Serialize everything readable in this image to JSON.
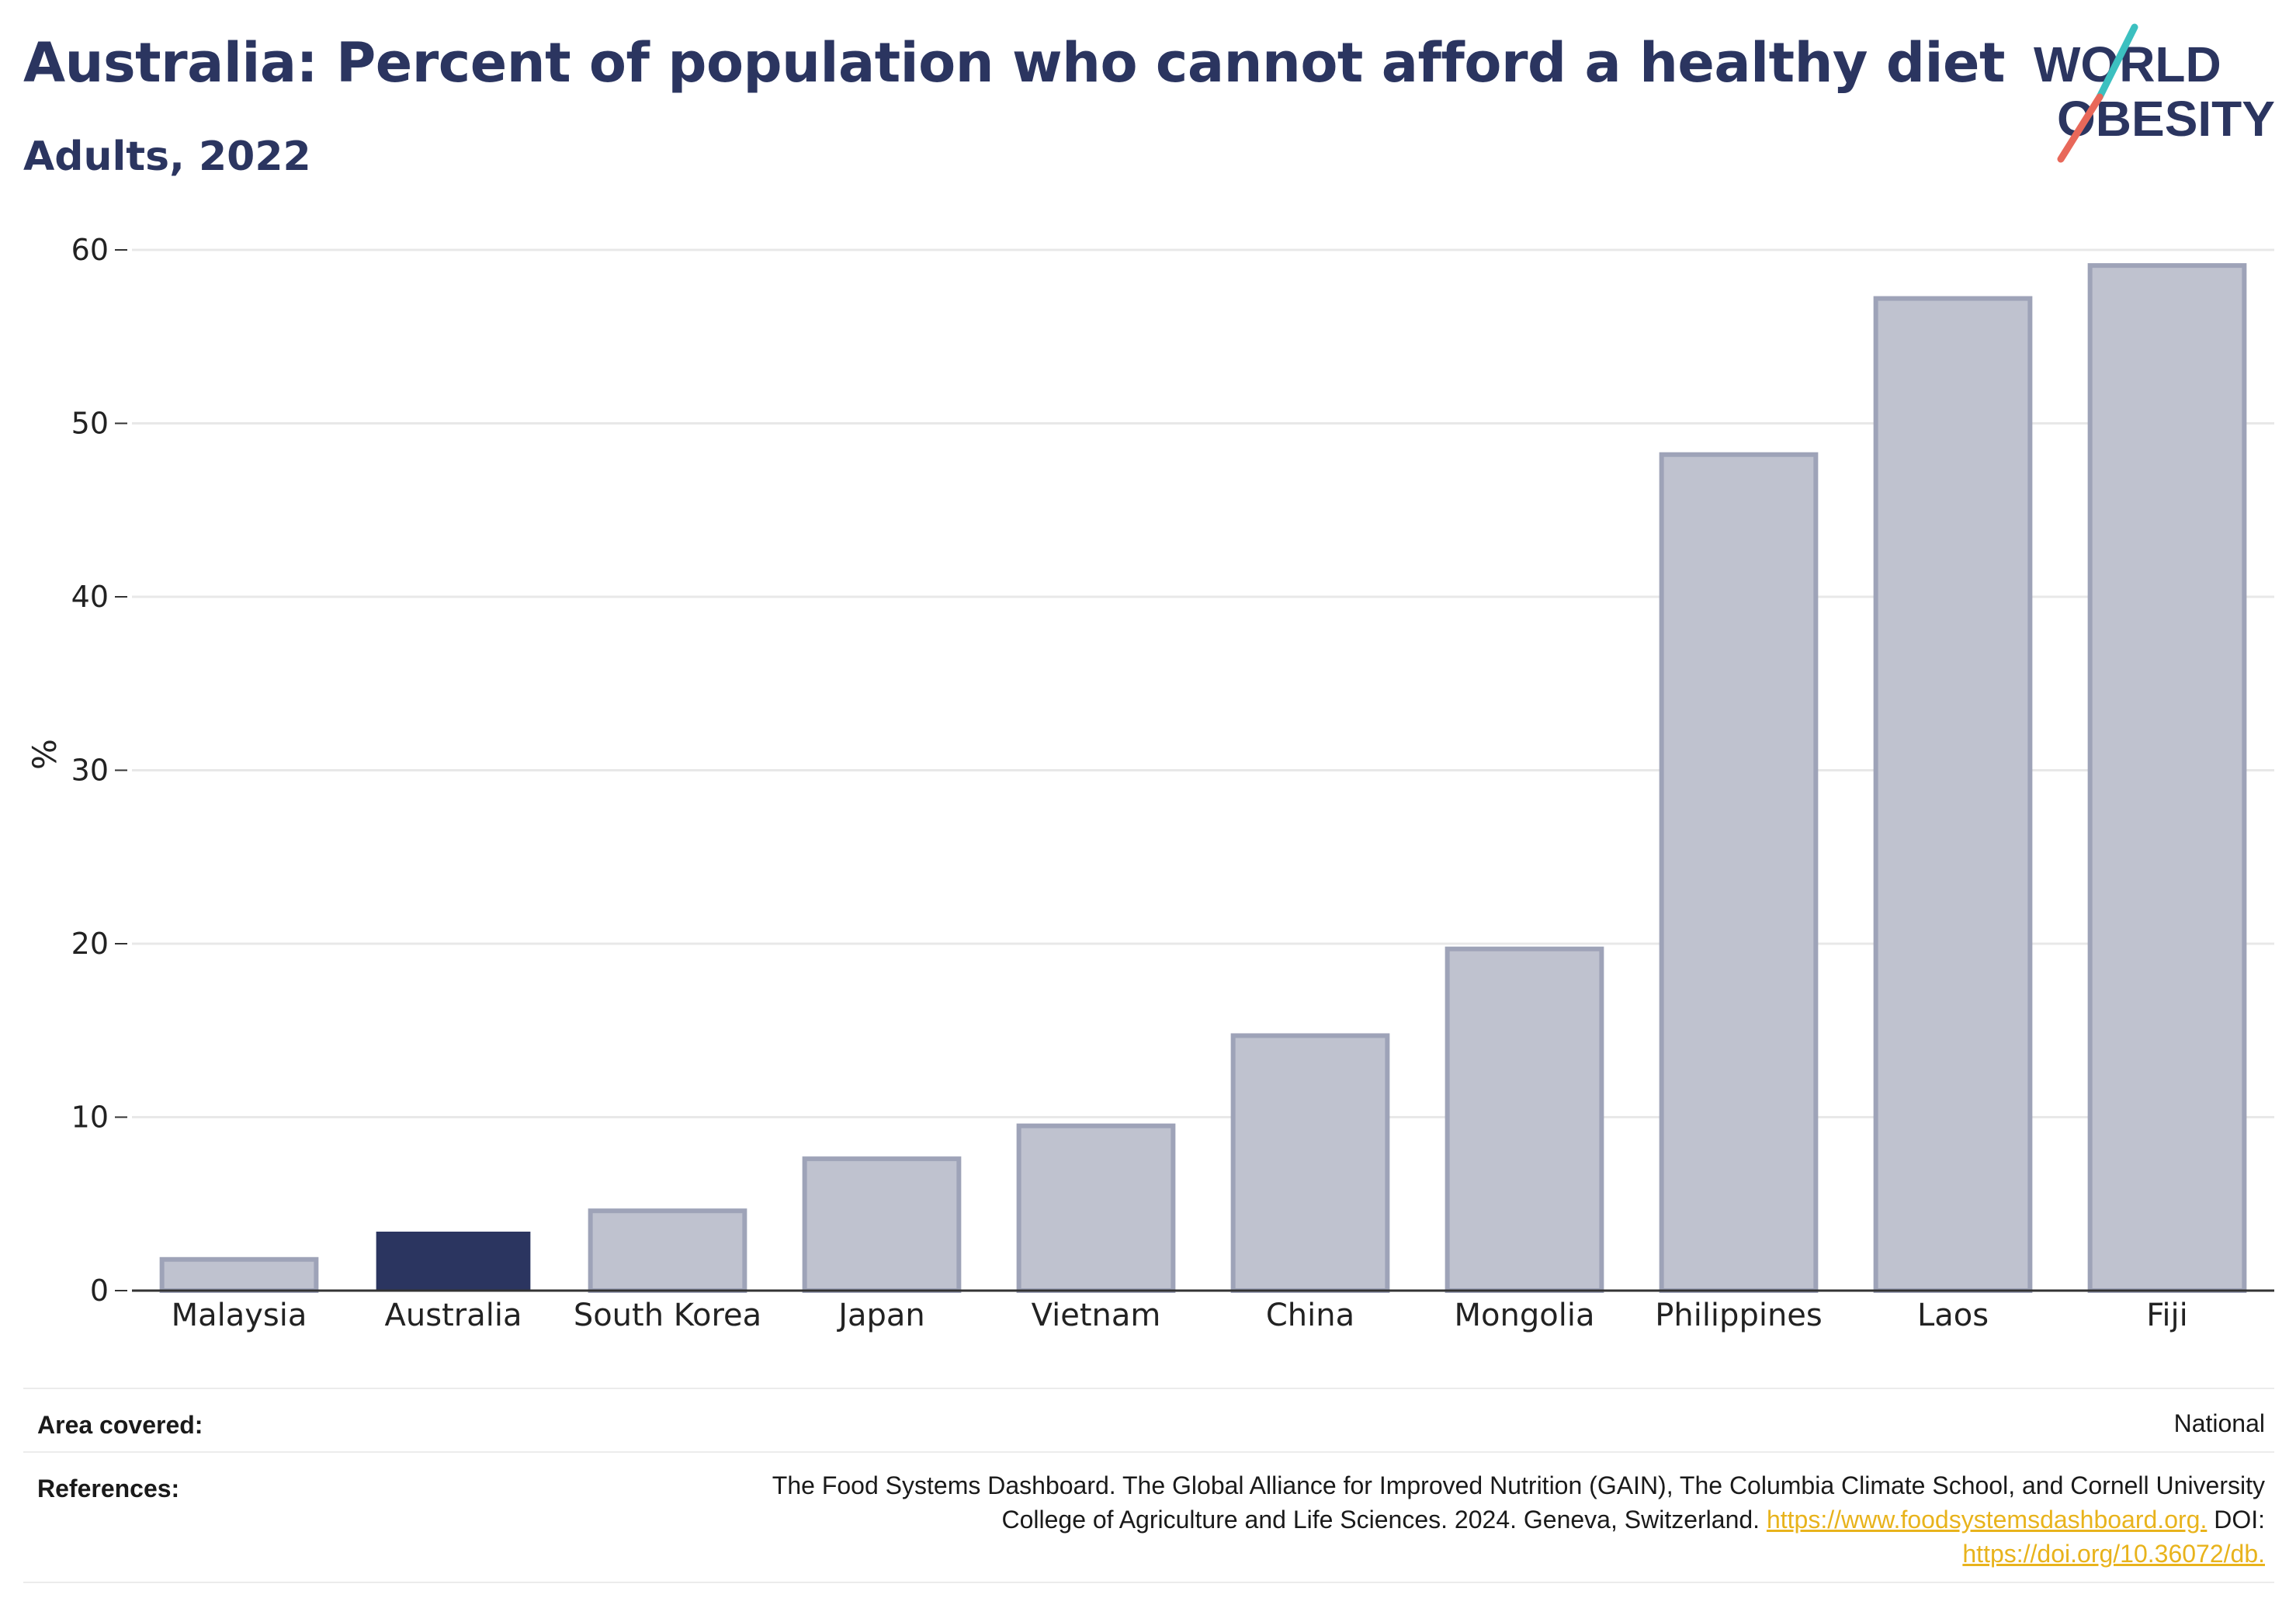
{
  "header": {
    "title": "Australia: Percent of population who cannot afford a healthy diet",
    "subtitle": "Adults, 2022"
  },
  "logo": {
    "line1": "WORLD",
    "line2": "OBESITY",
    "colors": {
      "text": "#2b3560",
      "slash_red": "#e8685a",
      "slash_teal": "#3cc0c0"
    }
  },
  "colors": {
    "highlight_bar": "#2b3560",
    "other_bar_fill": "#bfc2cf",
    "other_bar_stroke": "#9ea3b8",
    "gridline": "#e8e8e8",
    "axis": "#333333",
    "link": "#e8b31c"
  },
  "chart_data": {
    "type": "bar",
    "title": "Australia: Percent of population who cannot afford a healthy diet",
    "subtitle": "Adults, 2022",
    "xlabel": "",
    "ylabel": "%",
    "ylim": [
      0,
      60
    ],
    "yticks": [
      0,
      10,
      20,
      30,
      40,
      50,
      60
    ],
    "grid": true,
    "highlight": "Australia",
    "categories": [
      "Malaysia",
      "Australia",
      "South Korea",
      "Japan",
      "Vietnam",
      "China",
      "Mongolia",
      "Philippines",
      "Laos",
      "Fiji"
    ],
    "values": [
      1.8,
      3.4,
      4.6,
      7.6,
      9.5,
      14.7,
      19.7,
      48.2,
      57.2,
      59.1
    ]
  },
  "footer": {
    "area_label": "Area covered:",
    "area_value": "National",
    "references_label": "References:",
    "references_line1": "The Food Systems Dashboard. The Global Alliance for Improved Nutrition (GAIN), The Columbia Climate School, and Cornell University",
    "references_line2_text": "College of Agriculture and Life Sciences. 2024. Geneva, Switzerland. ",
    "references_link1": "https://www.foodsystemsdashboard.org.",
    "references_doi_label": " DOI:",
    "references_link2": "https://doi.org/10.36072/db."
  }
}
